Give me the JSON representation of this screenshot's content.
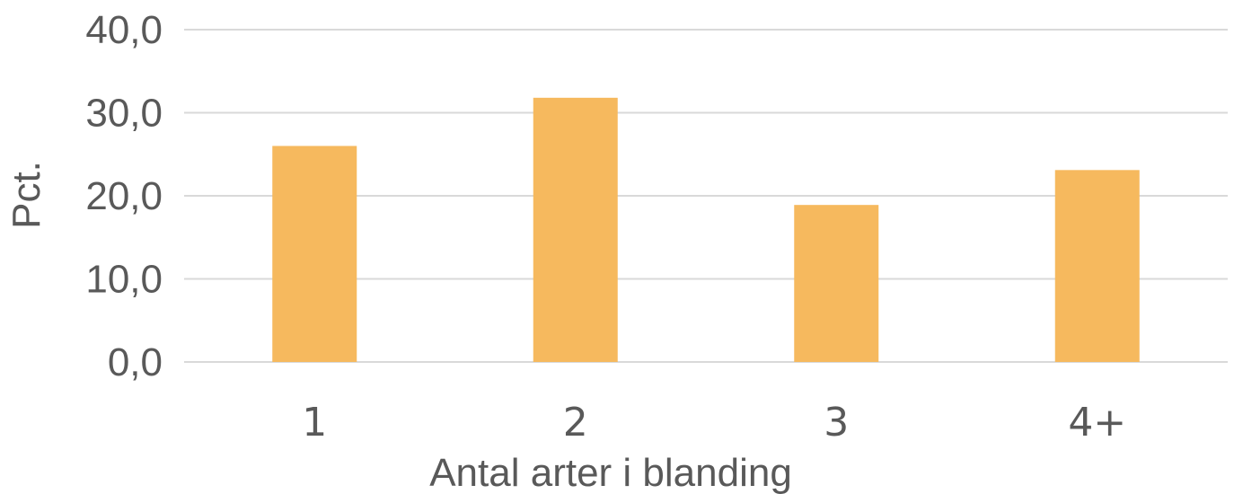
{
  "chart_data": {
    "type": "bar",
    "categories": [
      "1",
      "2",
      "3",
      "4+"
    ],
    "values": [
      26.0,
      31.8,
      18.9,
      23.1
    ],
    "title": "",
    "xlabel": "Antal arter i blanding",
    "ylabel": "Pct.",
    "ylim": [
      0,
      40
    ],
    "yticks": [
      0,
      10,
      20,
      30,
      40
    ],
    "ytick_labels": [
      "0,0",
      "10,0",
      "20,0",
      "30,0",
      "40,0"
    ],
    "grid": true,
    "legend": "none",
    "bar_color": "#f6b95e",
    "grid_color": "#d9d9d9",
    "text_color": "#595959"
  }
}
